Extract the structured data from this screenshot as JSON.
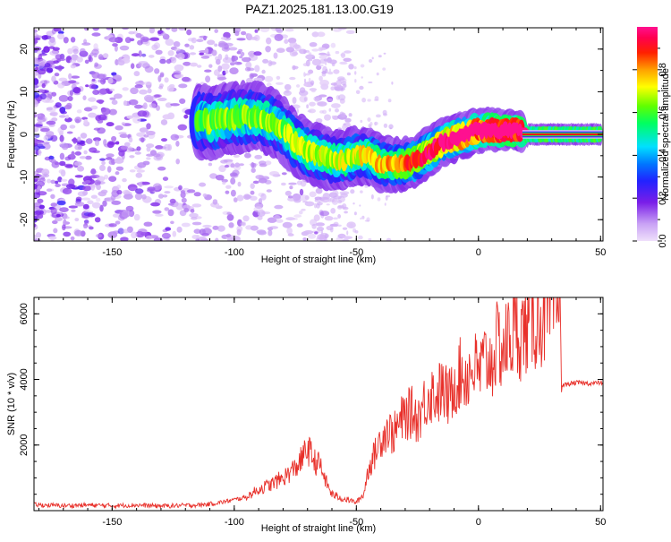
{
  "title": "PAZ1.2025.181.13.00.G19",
  "colors": {
    "snr_line": "#e8302a",
    "axis": "#000000",
    "background": "#ffffff"
  },
  "chart_data": [
    {
      "id": "spectrogram",
      "type": "heatmap",
      "xlabel": "Height of straight line (km)",
      "ylabel": "Frequency (Hz)",
      "xlim": [
        -182,
        51
      ],
      "ylim": [
        -25,
        25
      ],
      "xticks": [
        -150,
        -100,
        -50,
        0,
        50
      ],
      "yticks": [
        -20,
        -10,
        0,
        10,
        20
      ],
      "colorbar": {
        "label": "Normalized spectral amplitude",
        "ticks": [
          0.0,
          0.2,
          0.4,
          0.6,
          0.8
        ],
        "tick_labels": [
          "0.0",
          "0.2",
          "0.4",
          "0.6",
          "0.8"
        ],
        "range": [
          0,
          1
        ],
        "colormap": "rainbow (light violet → violet → blue → cyan → green → yellow → orange → red → magenta)"
      },
      "ridge": {
        "x": [
          -115,
          -108,
          -100,
          -95,
          -90,
          -85,
          -80,
          -75,
          -70,
          -65,
          -60,
          -55,
          -50,
          -45,
          -40,
          -35,
          -30,
          -25,
          -20,
          -15,
          -10,
          -5,
          0,
          5,
          10,
          15,
          20,
          30,
          40,
          50
        ],
        "freq": [
          3,
          3,
          4,
          4,
          4,
          3,
          1,
          -2,
          -4,
          -5,
          -6,
          -6,
          -5,
          -5,
          -7,
          -7,
          -7,
          -6,
          -4,
          -2,
          -1,
          0,
          1,
          1,
          1,
          1,
          0,
          0,
          0,
          0
        ],
        "amplitude": [
          0.25,
          0.3,
          0.3,
          0.3,
          0.3,
          0.3,
          0.3,
          0.35,
          0.35,
          0.35,
          0.35,
          0.35,
          0.38,
          0.4,
          0.42,
          0.45,
          0.5,
          0.55,
          0.6,
          0.65,
          0.7,
          0.75,
          0.8,
          0.85,
          0.9,
          0.92,
          0.95,
          0.95,
          0.95,
          0.95
        ]
      }
    },
    {
      "id": "snr",
      "type": "line",
      "xlabel": "Height of straight line (km)",
      "ylabel": "SNR (10 * v/v)",
      "xlim": [
        -182,
        51
      ],
      "ylim": [
        0,
        6500
      ],
      "xticks": [
        -150,
        -100,
        -50,
        0,
        50
      ],
      "yticks": [
        2000,
        4000,
        6000
      ],
      "series": [
        {
          "x": [
            -182,
            -170,
            -160,
            -150,
            -140,
            -130,
            -120,
            -115,
            -110,
            -105,
            -100,
            -95,
            -90,
            -85,
            -80,
            -75,
            -72,
            -70,
            -67,
            -65,
            -62,
            -60,
            -57,
            -55,
            -52,
            -50,
            -47,
            -45,
            -42,
            -40,
            -37,
            -35,
            -32,
            -30,
            -27,
            -25,
            -22,
            -20,
            -17,
            -15,
            -12,
            -10,
            -7,
            -5,
            -2,
            0,
            3,
            5,
            8,
            10,
            13,
            15,
            18,
            20,
            23,
            25,
            28,
            30,
            32,
            33.5,
            34,
            36,
            40,
            45,
            51
          ],
          "values": [
            180,
            150,
            170,
            150,
            170,
            140,
            160,
            170,
            200,
            260,
            330,
            420,
            650,
            800,
            1000,
            1300,
            1600,
            1900,
            1500,
            1400,
            800,
            500,
            400,
            350,
            300,
            250,
            500,
            1300,
            1800,
            2200,
            2500,
            2300,
            2700,
            2900,
            3000,
            2800,
            3300,
            3600,
            3500,
            3700,
            3400,
            3900,
            4200,
            4100,
            4400,
            4200,
            4600,
            4500,
            5100,
            4900,
            5300,
            5500,
            5400,
            5700,
            5800,
            5900,
            6000,
            6100,
            6200,
            6300,
            3800,
            3850,
            3900,
            3880,
            3900
          ]
        }
      ]
    }
  ]
}
